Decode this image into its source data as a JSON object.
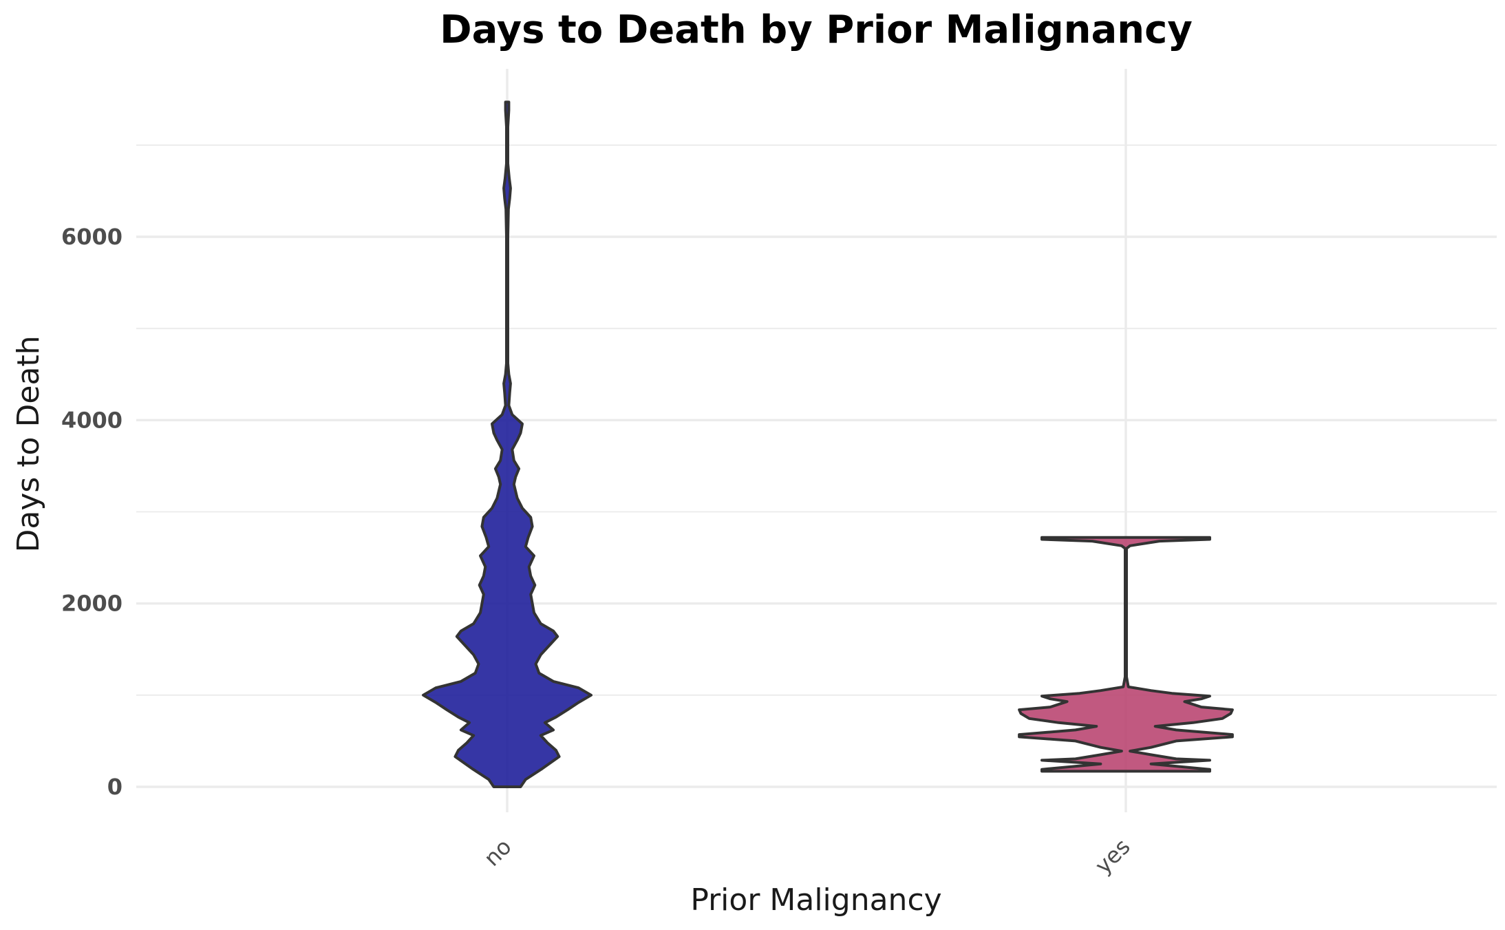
{
  "chart_data": {
    "type": "violin",
    "title": "Days to Death by Prior Malignancy",
    "xlabel": "Prior Malignancy",
    "ylabel": "Days to Death",
    "categories": [
      "no",
      "yes"
    ],
    "ylim": [
      -300,
      8000
    ],
    "yticks": [
      0,
      2000,
      4000,
      6000
    ],
    "grid": true,
    "legend": "none",
    "colors": {
      "no": "#1a1a99",
      "yes": "#b8426e"
    },
    "series": [
      {
        "category": "no",
        "color": "#1a1a99",
        "density_profile": [
          [
            0,
            0.16
          ],
          [
            80,
            0.22
          ],
          [
            200,
            0.42
          ],
          [
            330,
            0.62
          ],
          [
            400,
            0.58
          ],
          [
            480,
            0.48
          ],
          [
            560,
            0.4
          ],
          [
            620,
            0.55
          ],
          [
            700,
            0.45
          ],
          [
            760,
            0.58
          ],
          [
            840,
            0.72
          ],
          [
            920,
            0.85
          ],
          [
            1000,
            1.0
          ],
          [
            1080,
            0.85
          ],
          [
            1150,
            0.55
          ],
          [
            1240,
            0.38
          ],
          [
            1340,
            0.34
          ],
          [
            1440,
            0.4
          ],
          [
            1540,
            0.5
          ],
          [
            1640,
            0.6
          ],
          [
            1700,
            0.55
          ],
          [
            1780,
            0.4
          ],
          [
            1900,
            0.32
          ],
          [
            2000,
            0.3
          ],
          [
            2100,
            0.28
          ],
          [
            2200,
            0.33
          ],
          [
            2300,
            0.28
          ],
          [
            2400,
            0.26
          ],
          [
            2520,
            0.32
          ],
          [
            2620,
            0.22
          ],
          [
            2720,
            0.25
          ],
          [
            2840,
            0.3
          ],
          [
            2940,
            0.28
          ],
          [
            3040,
            0.18
          ],
          [
            3150,
            0.12
          ],
          [
            3300,
            0.08
          ],
          [
            3380,
            0.1
          ],
          [
            3470,
            0.14
          ],
          [
            3560,
            0.08
          ],
          [
            3680,
            0.06
          ],
          [
            3780,
            0.12
          ],
          [
            3860,
            0.16
          ],
          [
            3960,
            0.18
          ],
          [
            4060,
            0.06
          ],
          [
            4160,
            0.02
          ],
          [
            4300,
            0.03
          ],
          [
            4400,
            0.04
          ],
          [
            4500,
            0.02
          ],
          [
            4620,
            0.008
          ],
          [
            5000,
            0.008
          ],
          [
            6000,
            0.008
          ],
          [
            6300,
            0.015
          ],
          [
            6420,
            0.03
          ],
          [
            6530,
            0.04
          ],
          [
            6640,
            0.025
          ],
          [
            6800,
            0.008
          ],
          [
            7200,
            0.008
          ],
          [
            7380,
            0.02
          ],
          [
            7470,
            0.02
          ]
        ]
      },
      {
        "category": "yes",
        "color": "#b8426e",
        "density_profile": [
          [
            170,
            1.0
          ],
          [
            190,
            1.0
          ],
          [
            220,
            0.65
          ],
          [
            250,
            0.3
          ],
          [
            270,
            0.65
          ],
          [
            290,
            1.0
          ],
          [
            305,
            0.6
          ],
          [
            350,
            0.3
          ],
          [
            390,
            0.05
          ],
          [
            430,
            0.3
          ],
          [
            500,
            0.6
          ],
          [
            545,
            1.27
          ],
          [
            570,
            1.27
          ],
          [
            620,
            0.6
          ],
          [
            660,
            0.35
          ],
          [
            700,
            0.8
          ],
          [
            745,
            1.15
          ],
          [
            800,
            1.25
          ],
          [
            840,
            1.27
          ],
          [
            870,
            0.9
          ],
          [
            930,
            0.7
          ],
          [
            960,
            0.9
          ],
          [
            990,
            1.0
          ],
          [
            1020,
            0.55
          ],
          [
            1050,
            0.3
          ],
          [
            1090,
            0.03
          ],
          [
            1200,
            0.008
          ],
          [
            2000,
            0.008
          ],
          [
            2600,
            0.008
          ],
          [
            2630,
            0.05
          ],
          [
            2680,
            0.4
          ],
          [
            2700,
            1.0
          ],
          [
            2720,
            1.0
          ]
        ]
      }
    ]
  }
}
